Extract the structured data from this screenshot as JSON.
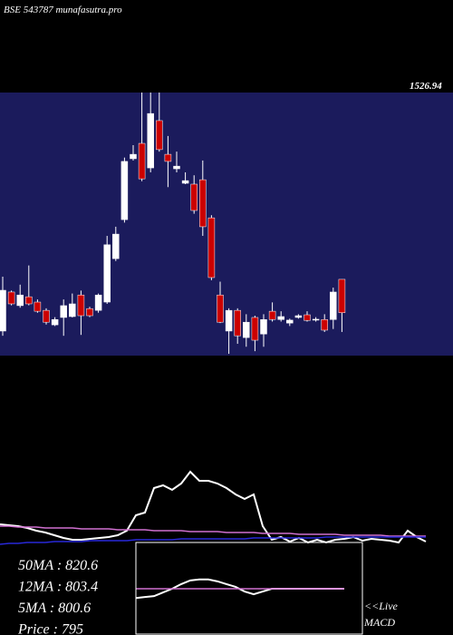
{
  "chart_data": [
    {
      "type": "candlestick",
      "title": "BSE 543787 munafasutra.pro",
      "price_label": "1526.94",
      "background": "#1b1b5c",
      "up_color": "#ffffff",
      "down_color": "#cc0000",
      "ylim": [
        650,
        1540
      ],
      "open": [
        733,
        865,
        819,
        849,
        831,
        803,
        754,
        779,
        782,
        855,
        809,
        803,
        831,
        978,
        1110,
        1316,
        1368,
        1285,
        1445,
        1331,
        1282,
        1233,
        1230,
        1245,
        1116,
        855,
        733,
        803,
        711,
        779,
        723,
        800,
        772,
        760,
        779,
        788,
        770,
        772,
        772,
        908
      ],
      "high": [
        917,
        870,
        890,
        955,
        840,
        810,
        780,
        840,
        860,
        870,
        815,
        860,
        1055,
        1086,
        1320,
        1362,
        1540,
        1540,
        1540,
        1393,
        1340,
        1270,
        1260,
        1310,
        1125,
        900,
        810,
        810,
        790,
        785,
        790,
        830,
        800,
        775,
        790,
        800,
        780,
        790,
        880,
        908
      ],
      "low": [
        717,
        820,
        812,
        820,
        795,
        755,
        750,
        717,
        779,
        720,
        780,
        795,
        825,
        970,
        1100,
        1310,
        1240,
        1270,
        1340,
        1220,
        1270,
        1230,
        1130,
        1055,
        905,
        760,
        656,
        690,
        680,
        665,
        680,
        765,
        765,
        750,
        775,
        765,
        765,
        730,
        740,
        730
      ],
      "close": [
        871,
        825,
        855,
        825,
        800,
        763,
        772,
        819,
        825,
        785,
        785,
        855,
        1025,
        1061,
        1307,
        1331,
        1248,
        1469,
        1347,
        1307,
        1291,
        1242,
        1141,
        1086,
        914,
        763,
        803,
        717,
        763,
        702,
        772,
        772,
        782,
        770,
        785,
        769,
        773,
        736,
        865,
        795
      ]
    },
    {
      "type": "line",
      "ylim": [
        0,
        100
      ],
      "annotations": [
        "50MA : 820.6",
        "12MA : 803.4",
        "5MA : 800.6",
        "Price   : 795"
      ],
      "series": [
        {
          "color": "#ffffff",
          "values": [
            22,
            21,
            20,
            18,
            15,
            13,
            10,
            7,
            5,
            5,
            6,
            7,
            8,
            10,
            15,
            32,
            35,
            62,
            65,
            60,
            67,
            80,
            70,
            70,
            67,
            62,
            55,
            50,
            55,
            20,
            5,
            8,
            3,
            7,
            2,
            5,
            2,
            5,
            6,
            8,
            4,
            6,
            5,
            4,
            2,
            15,
            8,
            3
          ]
        },
        {
          "color": "#d070d0",
          "values": [
            20,
            20,
            19,
            19,
            19,
            18,
            18,
            18,
            18,
            17,
            17,
            17,
            17,
            16,
            16,
            16,
            16,
            15,
            15,
            15,
            15,
            14,
            14,
            14,
            14,
            13,
            13,
            13,
            13,
            12,
            12,
            12,
            12,
            11,
            11,
            11,
            11,
            11,
            10,
            10,
            10,
            10,
            10,
            9,
            9,
            9,
            9,
            9
          ]
        },
        {
          "color": "#2828d8",
          "values": [
            0,
            1,
            1,
            2,
            2,
            2,
            3,
            3,
            3,
            3,
            4,
            4,
            4,
            4,
            4,
            5,
            5,
            5,
            5,
            5,
            6,
            6,
            6,
            6,
            6,
            6,
            6,
            6,
            7,
            7,
            7,
            7,
            7,
            7,
            7,
            7,
            8,
            8,
            8,
            8,
            8,
            8,
            8,
            8,
            8,
            8,
            8,
            8
          ]
        }
      ]
    },
    {
      "type": "line",
      "ylim": [
        -50,
        50
      ],
      "annotations": [
        "<<Live",
        "MACD"
      ],
      "series": [
        {
          "color": "#ffffff",
          "values": [
            -10,
            -9,
            -8,
            -4,
            0,
            5,
            9,
            10,
            10,
            8,
            5,
            2,
            -3,
            -6,
            -3,
            0,
            0,
            0,
            0,
            0,
            0,
            0,
            0,
            0
          ]
        },
        {
          "color": "#d070d0",
          "values": [
            0,
            0,
            0,
            0,
            0,
            0,
            0,
            0,
            0,
            0,
            0,
            0,
            0,
            0,
            0,
            0,
            0,
            0,
            0,
            0,
            0,
            0,
            0,
            0
          ]
        }
      ]
    }
  ]
}
